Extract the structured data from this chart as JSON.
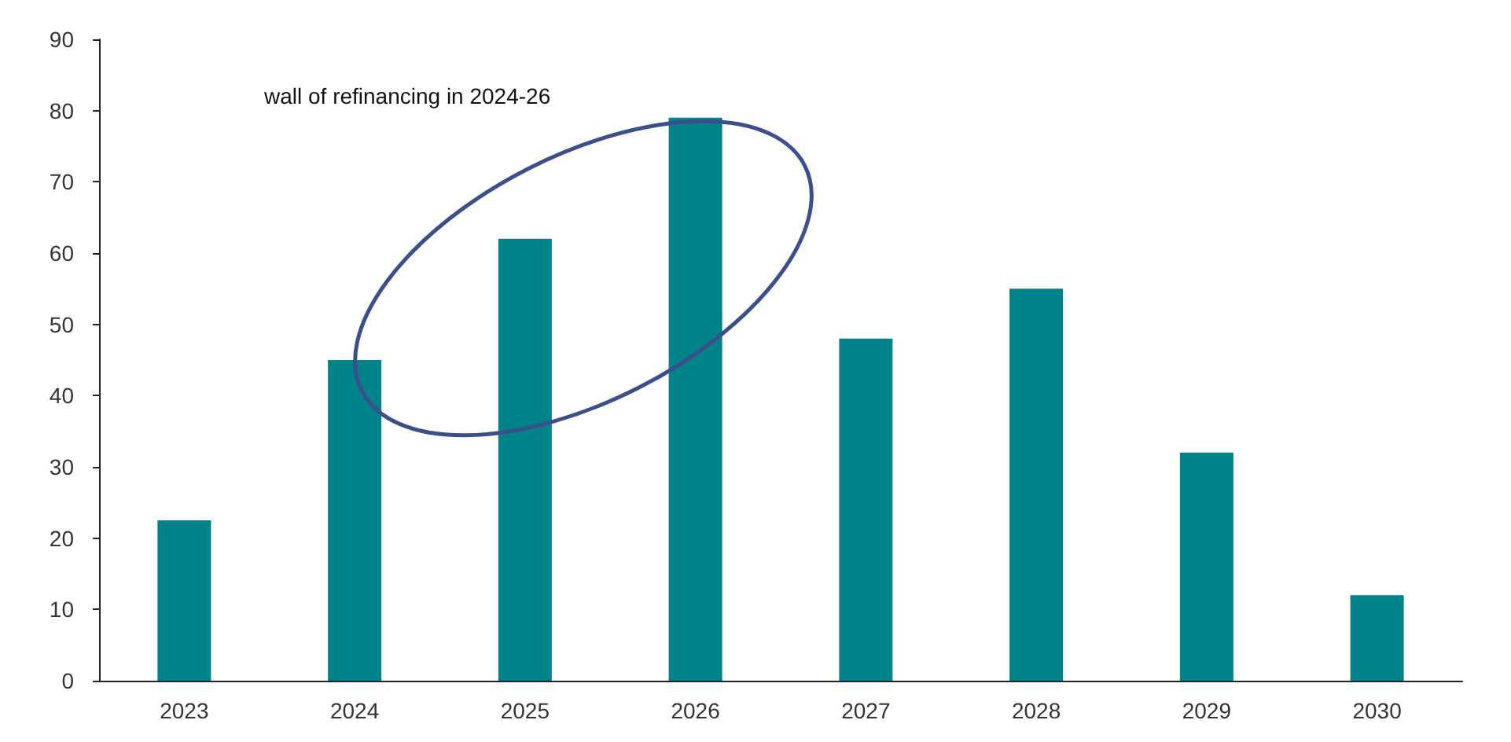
{
  "chart_data": {
    "type": "bar",
    "categories": [
      "2023",
      "2024",
      "2025",
      "2026",
      "2027",
      "2028",
      "2029",
      "2030"
    ],
    "values": [
      22.5,
      45,
      62,
      79,
      48,
      55,
      32,
      12
    ],
    "color": "#00838a",
    "ylim": [
      0,
      90
    ],
    "yticks": [
      0,
      10,
      20,
      30,
      40,
      50,
      60,
      70,
      80,
      90
    ],
    "grid": false,
    "annotations": [
      "wall of refinancing in 2024-26"
    ]
  }
}
